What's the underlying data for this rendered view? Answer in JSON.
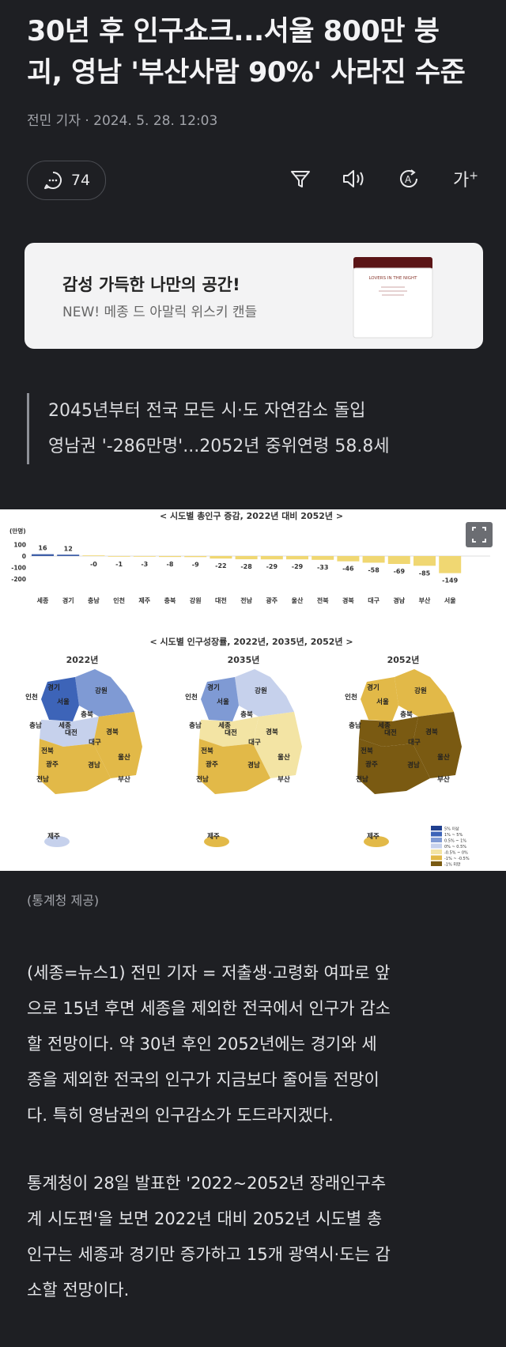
{
  "article": {
    "headline_line1": "30년 후 인구쇼크...서울 800만 붕",
    "headline_line2": "괴, 영남 '부산사람 90%' 사라진 수준",
    "byline": "전민 기자 ·  2024. 5. 28. 12:03"
  },
  "toolbar": {
    "comment_count": "74",
    "icons": [
      "comment-icon",
      "filter-icon",
      "speaker-icon",
      "translate-icon",
      "font-size-icon"
    ],
    "font_size_label": "가"
  },
  "ad": {
    "title": "감성 가득한 나만의 공간!",
    "subtitle": "NEW! 메종 드 아말릭 위스키 캔들",
    "product_label": "LOVERS IN THE NIGHT"
  },
  "subheadline": {
    "line1": "2045년부터 전국 모든 시·도 자연감소 돌입",
    "line2": "영남권 '-286만명'...2052년 중위연령 58.8세"
  },
  "figure": {
    "bar_title": "< 시도별 총인구 증감, 2022년 대비 2052년 >",
    "map_title": "< 시도별 인구성장률, 2022년, 2035년, 2052년 >",
    "map_years": [
      "2022년",
      "2035년",
      "2052년"
    ],
    "map_region_labels": [
      "경기",
      "강원",
      "인천",
      "서울",
      "충북",
      "충남",
      "세종",
      "대전",
      "대구",
      "경북",
      "전북",
      "울산",
      "광주",
      "경남",
      "전남",
      "부산",
      "제주"
    ],
    "legend_items": [
      "5% 이상",
      "1% ~ 5%",
      "0.5% ~ 1%",
      "0% ~ 0.5%",
      "-0.5% ~ 0%",
      "-1% ~ -0.5%",
      "-1% 미만"
    ],
    "legend_colors": [
      "#1f3f8f",
      "#3d64b8",
      "#7f9ad4",
      "#c6d1ec",
      "#f3e4a4",
      "#e2b948",
      "#7a5a12"
    ],
    "expand_icon": "expand-icon"
  },
  "chart_data": {
    "type": "bar",
    "title": "< 시도별 총인구 증감, 2022년 대비 2052년 >",
    "ylabel": "(만명)",
    "yticks": [
      "100",
      "0",
      "-100",
      "-200"
    ],
    "ylim": [
      -200,
      100
    ],
    "categories": [
      "세종",
      "경기",
      "충남",
      "인천",
      "제주",
      "충북",
      "강원",
      "대전",
      "전남",
      "광주",
      "울산",
      "전북",
      "경북",
      "대구",
      "경남",
      "부산",
      "서울"
    ],
    "values": [
      16,
      12,
      0,
      -1,
      -3,
      -8,
      -9,
      -22,
      -28,
      -29,
      -29,
      -33,
      -46,
      -58,
      -69,
      -85,
      -149
    ],
    "value_labels": [
      "16",
      "12",
      "-0",
      "-1",
      "-3",
      "-8",
      "-9",
      "-22",
      "-28",
      "-29",
      "-29",
      "-33",
      "-46",
      "-58",
      "-69",
      "-85",
      "-149"
    ],
    "positive_color": "#3f5fa8",
    "negative_color": "#f0d772"
  },
  "caption": "(통계청 제공)",
  "body": [
    [
      "(세종=뉴스1) 전민 기자 = 저출생·고령화 여파로 앞",
      "으로 15년 후면 세종을 제외한 전국에서 인구가 감소",
      "할 전망이다. 약 30년 후인 2052년에는 경기와 세",
      "종을 제외한 전국의 인구가 지금보다 줄어들 전망이",
      "다. 특히 영남권의 인구감소가 도드라지겠다."
    ],
    [
      "통계청이 28일 발표한 '2022~2052년 장래인구추",
      "계 시도편'을 보면 2022년 대비 2052년 시도별 총",
      "인구는 세종과 경기만 증가하고 15개 광역시·도는 감",
      "소할 전망이다."
    ]
  ]
}
